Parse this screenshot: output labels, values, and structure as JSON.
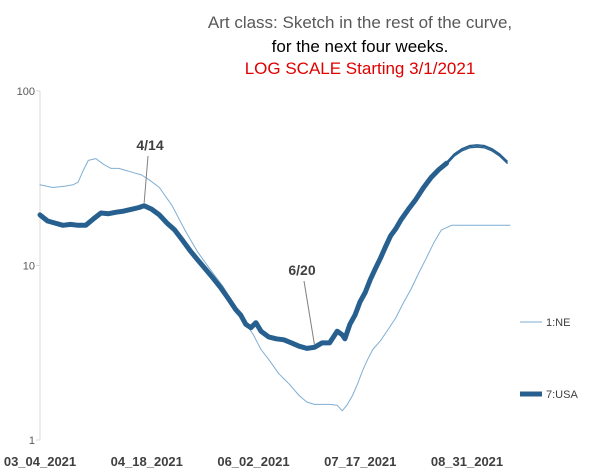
{
  "chart_data": {
    "type": "line",
    "title_lines": [
      "Art class:  Sketch in the rest of the curve,",
      "for the next four weeks.",
      "LOG SCALE Starting 3/1/2021"
    ],
    "title_colors": [
      "#595959",
      "#000000",
      "#e00000"
    ],
    "yscale": "log",
    "ylim": [
      1,
      100
    ],
    "yticks": [
      "100",
      "10",
      "1"
    ],
    "xtick_labels": [
      "03_04_2021",
      "04_18_2021",
      "06_02_2021",
      "07_17_2021",
      "08_31_2021"
    ],
    "xlim_days": [
      0,
      185
    ],
    "annotations": [
      {
        "label": "4/14",
        "x": 41,
        "y": 22
      },
      {
        "label": "6/20",
        "x": 108,
        "y": 3.4
      }
    ],
    "series": [
      {
        "name": "1:NE",
        "color": "#7faed3",
        "width": 1,
        "x": [
          0,
          5,
          10,
          13,
          15,
          17,
          19,
          22,
          25,
          28,
          31,
          34,
          37,
          40,
          43,
          47,
          52,
          57,
          62,
          67,
          72,
          77,
          80,
          84,
          87,
          90,
          94,
          98,
          102,
          105,
          108,
          111,
          114,
          117,
          119,
          121,
          123,
          125,
          127,
          129,
          131,
          134,
          137,
          140,
          143,
          146,
          149,
          152,
          155,
          158,
          162,
          185
        ],
        "y": [
          29,
          28,
          28.5,
          29,
          30,
          35,
          40,
          41,
          38,
          36,
          36,
          35,
          34,
          33,
          31,
          28,
          22,
          16,
          12,
          9.5,
          7.6,
          5.8,
          4.9,
          4.0,
          3.3,
          2.9,
          2.4,
          2.1,
          1.8,
          1.65,
          1.6,
          1.6,
          1.6,
          1.58,
          1.47,
          1.6,
          1.8,
          2.1,
          2.5,
          2.9,
          3.3,
          3.7,
          4.3,
          5.0,
          6.1,
          7.3,
          9.0,
          11.0,
          13.5,
          16.0,
          17,
          17
        ]
      },
      {
        "name": "7:USA",
        "color": "#27608f",
        "width": 5,
        "x": [
          0,
          3,
          6,
          9,
          12,
          15,
          18,
          21,
          24,
          27,
          30,
          33,
          36,
          39,
          41,
          44,
          47,
          50,
          53,
          56,
          59,
          62,
          65,
          68,
          71,
          74,
          77,
          79,
          81,
          83,
          85,
          87,
          90,
          93,
          96,
          99,
          102,
          105,
          108,
          111,
          114,
          117,
          119,
          120,
          122,
          124,
          126,
          128,
          130,
          132,
          134,
          136,
          138,
          140,
          142,
          145,
          148,
          151,
          154,
          157,
          160
        ],
        "y": [
          19.5,
          18,
          17.5,
          17,
          17.2,
          17,
          17,
          18.5,
          20,
          19.8,
          20.2,
          20.5,
          21,
          21.5,
          22,
          21,
          19.5,
          17.5,
          16,
          14,
          12.2,
          10.8,
          9.6,
          8.5,
          7.5,
          6.5,
          5.6,
          5.2,
          4.6,
          4.4,
          4.7,
          4.2,
          3.9,
          3.8,
          3.75,
          3.6,
          3.45,
          3.35,
          3.4,
          3.6,
          3.6,
          4.2,
          4.0,
          3.8,
          4.6,
          5.2,
          6.2,
          7.0,
          8.3,
          9.6,
          11.0,
          12.8,
          14.8,
          16.2,
          18.2,
          21.0,
          24.0,
          28.0,
          32.0,
          35.5,
          38.5
        ]
      }
    ],
    "sketch": {
      "color": "#27608f",
      "x": [
        160,
        163,
        166,
        169,
        172,
        175,
        178,
        181,
        184
      ],
      "y": [
        38.5,
        43,
        46,
        48,
        48.5,
        48,
        46,
        43,
        39
      ]
    }
  }
}
